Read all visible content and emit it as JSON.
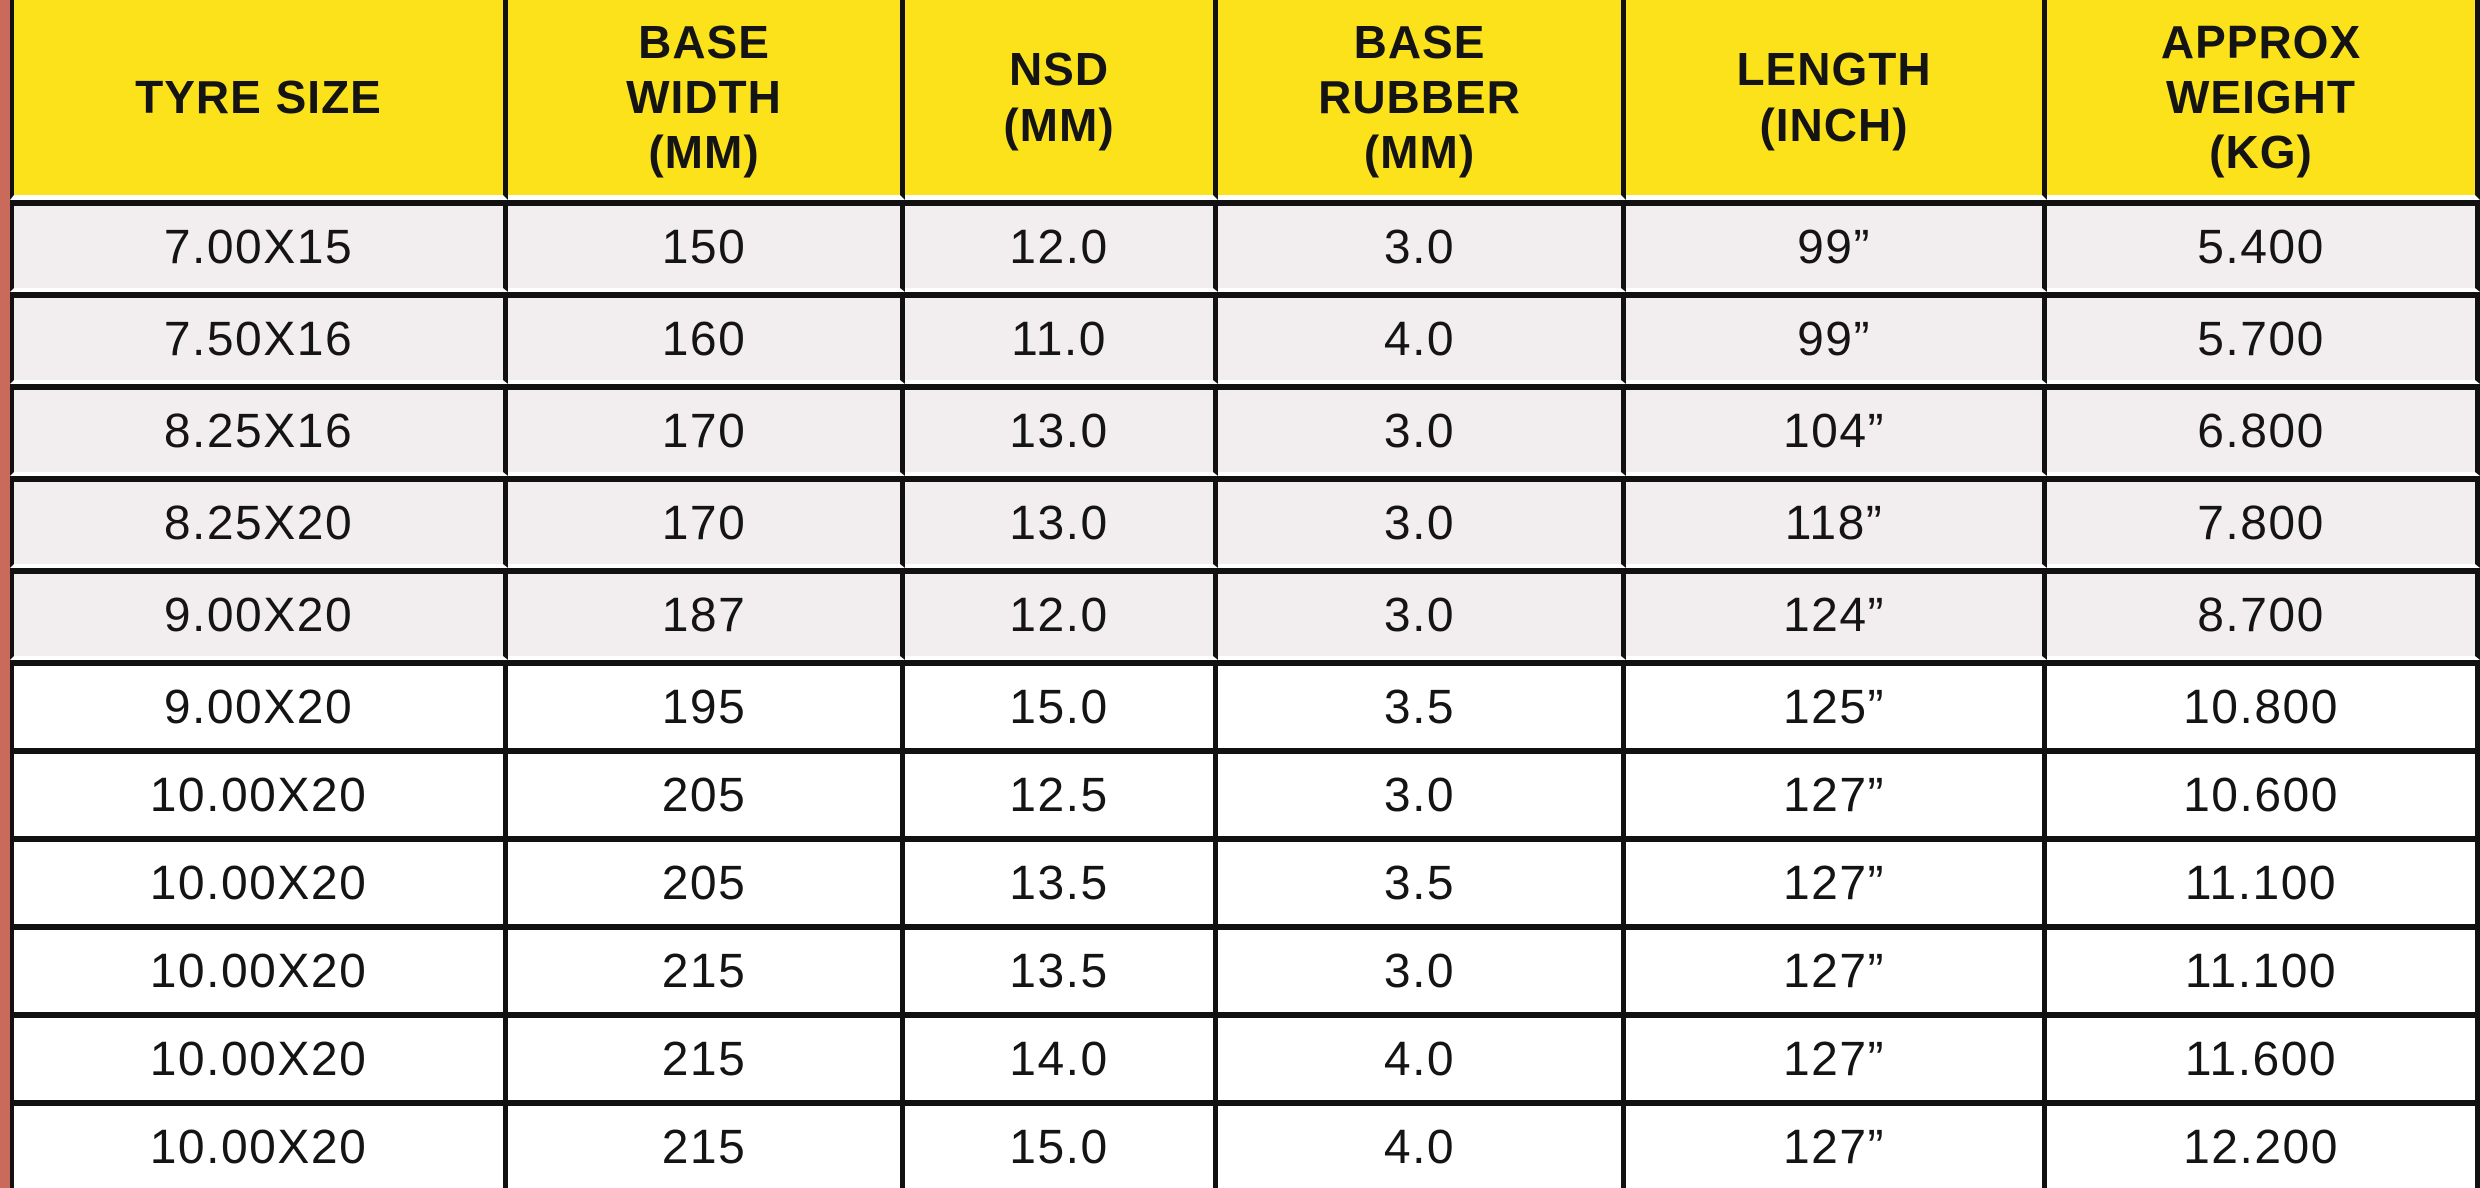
{
  "colors": {
    "header_bg": "#fbe21a",
    "border": "#111111",
    "shaded_row_bg": "#f2eeef",
    "left_stripe": "#c96a5b"
  },
  "table": {
    "header": {
      "columns": [
        {
          "key": "tyre_size",
          "label": "TYRE SIZE"
        },
        {
          "key": "base_width_mm",
          "label": "BASE\nWIDTH\n(MM)"
        },
        {
          "key": "nsd_mm",
          "label": "NSD\n(MM)"
        },
        {
          "key": "base_rubber_mm",
          "label": "BASE\nRUBBER\n(MM)"
        },
        {
          "key": "length_inch",
          "label": "LENGTH\n(INCH)"
        },
        {
          "key": "approx_weight_kg",
          "label": "APPROX\nWEIGHT\n(KG)"
        }
      ]
    },
    "rows": [
      {
        "tyre_size": "7.00X15",
        "base_width_mm": "150",
        "nsd_mm": "12.0",
        "base_rubber_mm": "3.0",
        "length_inch": "99”",
        "approx_weight_kg": "5.400",
        "shaded": true
      },
      {
        "tyre_size": "7.50X16",
        "base_width_mm": "160",
        "nsd_mm": "11.0",
        "base_rubber_mm": "4.0",
        "length_inch": "99”",
        "approx_weight_kg": "5.700",
        "shaded": true
      },
      {
        "tyre_size": "8.25X16",
        "base_width_mm": "170",
        "nsd_mm": "13.0",
        "base_rubber_mm": "3.0",
        "length_inch": "104”",
        "approx_weight_kg": "6.800",
        "shaded": true
      },
      {
        "tyre_size": "8.25X20",
        "base_width_mm": "170",
        "nsd_mm": "13.0",
        "base_rubber_mm": "3.0",
        "length_inch": "118”",
        "approx_weight_kg": "7.800",
        "shaded": true
      },
      {
        "tyre_size": "9.00X20",
        "base_width_mm": "187",
        "nsd_mm": "12.0",
        "base_rubber_mm": "3.0",
        "length_inch": "124”",
        "approx_weight_kg": "8.700",
        "shaded": true
      },
      {
        "tyre_size": "9.00X20",
        "base_width_mm": "195",
        "nsd_mm": "15.0",
        "base_rubber_mm": "3.5",
        "length_inch": "125”",
        "approx_weight_kg": "10.800",
        "shaded": false
      },
      {
        "tyre_size": "10.00X20",
        "base_width_mm": "205",
        "nsd_mm": "12.5",
        "base_rubber_mm": "3.0",
        "length_inch": "127”",
        "approx_weight_kg": "10.600",
        "shaded": false
      },
      {
        "tyre_size": "10.00X20",
        "base_width_mm": "205",
        "nsd_mm": "13.5",
        "base_rubber_mm": "3.5",
        "length_inch": "127”",
        "approx_weight_kg": "11.100",
        "shaded": false
      },
      {
        "tyre_size": "10.00X20",
        "base_width_mm": "215",
        "nsd_mm": "13.5",
        "base_rubber_mm": "3.0",
        "length_inch": "127”",
        "approx_weight_kg": "11.100",
        "shaded": false
      },
      {
        "tyre_size": "10.00X20",
        "base_width_mm": "215",
        "nsd_mm": "14.0",
        "base_rubber_mm": "4.0",
        "length_inch": "127”",
        "approx_weight_kg": "11.600",
        "shaded": false
      },
      {
        "tyre_size": "10.00X20",
        "base_width_mm": "215",
        "nsd_mm": "15.0",
        "base_rubber_mm": "4.0",
        "length_inch": "127”",
        "approx_weight_kg": "12.200",
        "shaded": false
      }
    ]
  },
  "chart_data": {
    "type": "table",
    "title": "",
    "columns": [
      "TYRE SIZE",
      "BASE WIDTH (MM)",
      "NSD (MM)",
      "BASE RUBBER (MM)",
      "LENGTH (INCH)",
      "APPROX WEIGHT (KG)"
    ],
    "rows": [
      [
        "7.00X15",
        "150",
        "12.0",
        "3.0",
        "99”",
        "5.400"
      ],
      [
        "7.50X16",
        "160",
        "11.0",
        "4.0",
        "99”",
        "5.700"
      ],
      [
        "8.25X16",
        "170",
        "13.0",
        "3.0",
        "104”",
        "6.800"
      ],
      [
        "8.25X20",
        "170",
        "13.0",
        "3.0",
        "118”",
        "7.800"
      ],
      [
        "9.00X20",
        "187",
        "12.0",
        "3.0",
        "124”",
        "8.700"
      ],
      [
        "9.00X20",
        "195",
        "15.0",
        "3.5",
        "125”",
        "10.800"
      ],
      [
        "10.00X20",
        "205",
        "12.5",
        "3.0",
        "127”",
        "10.600"
      ],
      [
        "10.00X20",
        "205",
        "13.5",
        "3.5",
        "127”",
        "11.100"
      ],
      [
        "10.00X20",
        "215",
        "13.5",
        "3.0",
        "127”",
        "11.100"
      ],
      [
        "10.00X20",
        "215",
        "14.0",
        "4.0",
        "127”",
        "11.600"
      ],
      [
        "10.00X20",
        "215",
        "15.0",
        "4.0",
        "127”",
        "12.200"
      ]
    ]
  }
}
